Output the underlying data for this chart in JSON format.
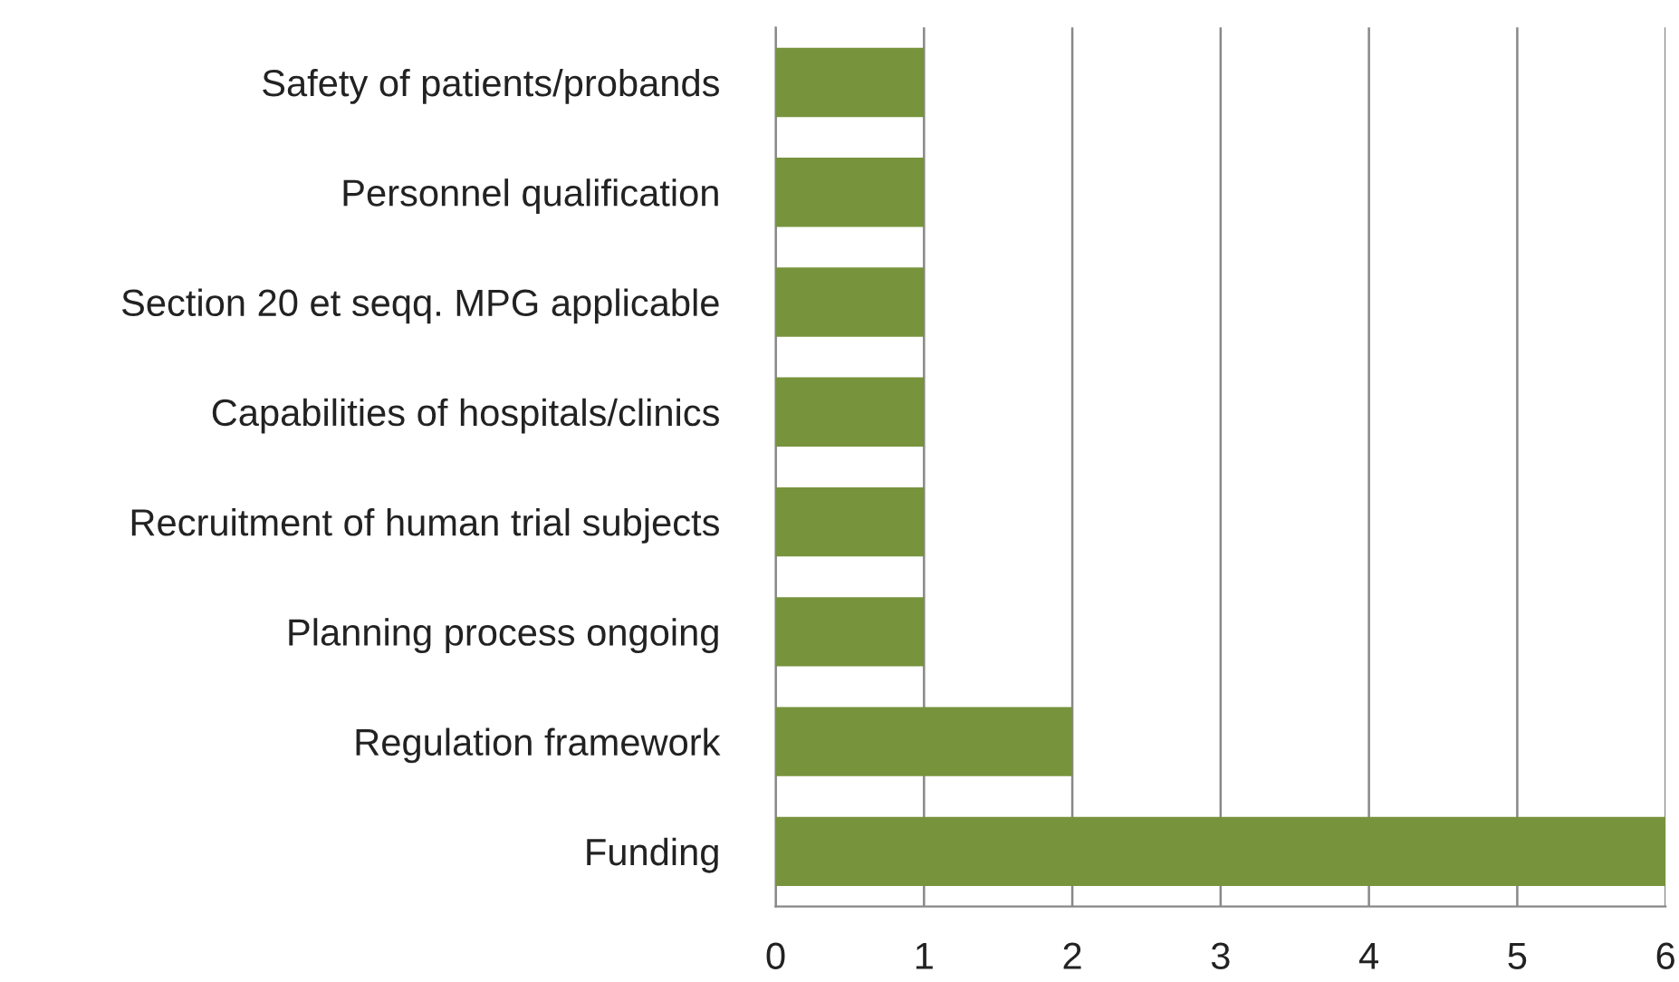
{
  "chart_data": {
    "type": "bar",
    "orientation": "horizontal",
    "categories": [
      "Safety of patients/probands",
      "Personnel qualification",
      "Section 20 et seqq. MPG applicable",
      "Capabilities of hospitals/clinics",
      "Recruitment of human trial subjects",
      "Planning process ongoing",
      "Regulation framework",
      "Funding"
    ],
    "values": [
      1,
      1,
      1,
      1,
      1,
      1,
      2,
      6
    ],
    "color": "#77933c",
    "xlim": [
      0,
      6
    ],
    "xticks": [
      0,
      1,
      2,
      3,
      4,
      5,
      6
    ],
    "grid": "x",
    "legend": false
  }
}
